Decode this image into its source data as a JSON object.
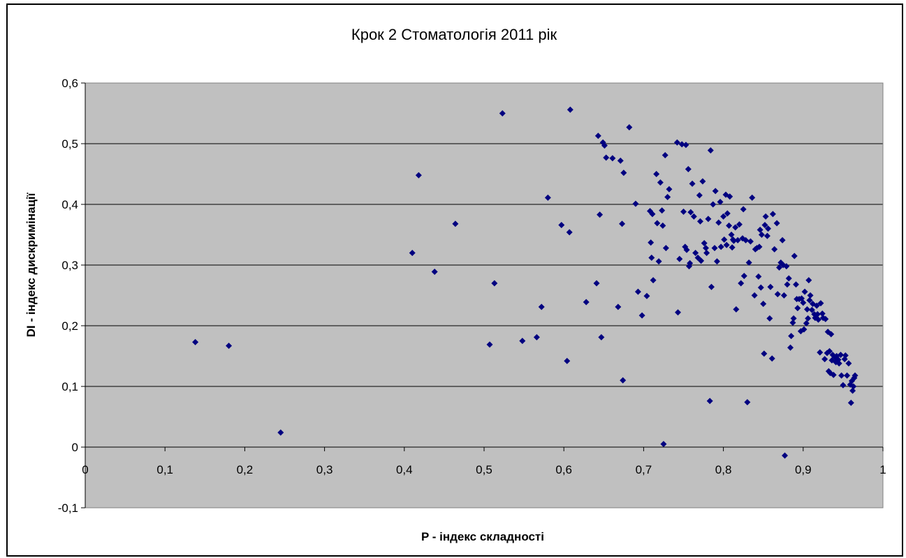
{
  "chart_data": {
    "type": "scatter",
    "title": "Крок 2 Стоматологія 2011 рік",
    "xlabel": "P - індекс складності",
    "ylabel": "DI - індекс дискримінації",
    "xlim": [
      0,
      1
    ],
    "ylim": [
      -0.1,
      0.6
    ],
    "x_ticks": [
      "0",
      "0,1",
      "0,2",
      "0,3",
      "0,4",
      "0,5",
      "0,6",
      "0,7",
      "0,8",
      "0,9",
      "1"
    ],
    "y_ticks": [
      "-0,1",
      "0",
      "0,1",
      "0,2",
      "0,3",
      "0,4",
      "0,5",
      "0,6"
    ],
    "grid": "horizontal",
    "plot_background": "#C0C0C0",
    "marker_color": "#000080",
    "marker": "diamond",
    "points": [
      [
        0.138,
        0.173
      ],
      [
        0.18,
        0.167
      ],
      [
        0.245,
        0.024
      ],
      [
        0.41,
        0.32
      ],
      [
        0.418,
        0.448
      ],
      [
        0.438,
        0.289
      ],
      [
        0.464,
        0.368
      ],
      [
        0.507,
        0.169
      ],
      [
        0.513,
        0.27
      ],
      [
        0.523,
        0.55
      ],
      [
        0.548,
        0.175
      ],
      [
        0.566,
        0.181
      ],
      [
        0.572,
        0.231
      ],
      [
        0.58,
        0.411
      ],
      [
        0.597,
        0.366
      ],
      [
        0.604,
        0.142
      ],
      [
        0.607,
        0.354
      ],
      [
        0.608,
        0.556
      ],
      [
        0.628,
        0.239
      ],
      [
        0.641,
        0.27
      ],
      [
        0.643,
        0.513
      ],
      [
        0.645,
        0.383
      ],
      [
        0.647,
        0.181
      ],
      [
        0.649,
        0.502
      ],
      [
        0.651,
        0.497
      ],
      [
        0.653,
        0.477
      ],
      [
        0.661,
        0.476
      ],
      [
        0.668,
        0.231
      ],
      [
        0.671,
        0.472
      ],
      [
        0.673,
        0.368
      ],
      [
        0.674,
        0.11
      ],
      [
        0.675,
        0.452
      ],
      [
        0.682,
        0.527
      ],
      [
        0.69,
        0.401
      ],
      [
        0.693,
        0.256
      ],
      [
        0.698,
        0.217
      ],
      [
        0.704,
        0.249
      ],
      [
        0.708,
        0.389
      ],
      [
        0.709,
        0.337
      ],
      [
        0.71,
        0.312
      ],
      [
        0.711,
        0.384
      ],
      [
        0.712,
        0.275
      ],
      [
        0.716,
        0.45
      ],
      [
        0.717,
        0.369
      ],
      [
        0.719,
        0.306
      ],
      [
        0.721,
        0.436
      ],
      [
        0.723,
        0.39
      ],
      [
        0.724,
        0.365
      ],
      [
        0.725,
        0.005
      ],
      [
        0.727,
        0.481
      ],
      [
        0.728,
        0.328
      ],
      [
        0.73,
        0.412
      ],
      [
        0.732,
        0.425
      ],
      [
        0.742,
        0.502
      ],
      [
        0.743,
        0.222
      ],
      [
        0.745,
        0.31
      ],
      [
        0.748,
        0.499
      ],
      [
        0.75,
        0.388
      ],
      [
        0.752,
        0.33
      ],
      [
        0.753,
        0.498
      ],
      [
        0.754,
        0.325
      ],
      [
        0.756,
        0.458
      ],
      [
        0.757,
        0.298
      ],
      [
        0.758,
        0.303
      ],
      [
        0.759,
        0.387
      ],
      [
        0.761,
        0.434
      ],
      [
        0.763,
        0.38
      ],
      [
        0.765,
        0.32
      ],
      [
        0.768,
        0.312
      ],
      [
        0.77,
        0.415
      ],
      [
        0.771,
        0.372
      ],
      [
        0.772,
        0.307
      ],
      [
        0.774,
        0.438
      ],
      [
        0.776,
        0.336
      ],
      [
        0.778,
        0.328
      ],
      [
        0.779,
        0.32
      ],
      [
        0.781,
        0.376
      ],
      [
        0.783,
        0.076
      ],
      [
        0.784,
        0.489
      ],
      [
        0.785,
        0.264
      ],
      [
        0.787,
        0.4
      ],
      [
        0.789,
        0.328
      ],
      [
        0.79,
        0.422
      ],
      [
        0.792,
        0.306
      ],
      [
        0.794,
        0.37
      ],
      [
        0.796,
        0.404
      ],
      [
        0.797,
        0.33
      ],
      [
        0.8,
        0.38
      ],
      [
        0.801,
        0.342
      ],
      [
        0.803,
        0.416
      ],
      [
        0.804,
        0.333
      ],
      [
        0.805,
        0.385
      ],
      [
        0.807,
        0.365
      ],
      [
        0.808,
        0.413
      ],
      [
        0.81,
        0.35
      ],
      [
        0.811,
        0.329
      ],
      [
        0.812,
        0.342
      ],
      [
        0.813,
        0.34
      ],
      [
        0.815,
        0.362
      ],
      [
        0.816,
        0.227
      ],
      [
        0.818,
        0.341
      ],
      [
        0.82,
        0.367
      ],
      [
        0.822,
        0.27
      ],
      [
        0.824,
        0.344
      ],
      [
        0.825,
        0.392
      ],
      [
        0.826,
        0.282
      ],
      [
        0.828,
        0.341
      ],
      [
        0.83,
        0.074
      ],
      [
        0.832,
        0.304
      ],
      [
        0.834,
        0.339
      ],
      [
        0.836,
        0.411
      ],
      [
        0.839,
        0.25
      ],
      [
        0.84,
        0.326
      ],
      [
        0.842,
        0.328
      ],
      [
        0.844,
        0.281
      ],
      [
        0.845,
        0.33
      ],
      [
        0.846,
        0.358
      ],
      [
        0.847,
        0.263
      ],
      [
        0.848,
        0.35
      ],
      [
        0.85,
        0.236
      ],
      [
        0.851,
        0.154
      ],
      [
        0.852,
        0.366
      ],
      [
        0.853,
        0.38
      ],
      [
        0.855,
        0.348
      ],
      [
        0.856,
        0.36
      ],
      [
        0.858,
        0.212
      ],
      [
        0.859,
        0.264
      ],
      [
        0.861,
        0.146
      ],
      [
        0.862,
        0.384
      ],
      [
        0.864,
        0.326
      ],
      [
        0.867,
        0.369
      ],
      [
        0.868,
        0.252
      ],
      [
        0.87,
        0.296
      ],
      [
        0.872,
        0.304
      ],
      [
        0.874,
        0.341
      ],
      [
        0.875,
        0.3
      ],
      [
        0.876,
        0.25
      ],
      [
        0.877,
        -0.014
      ],
      [
        0.879,
        0.298
      ],
      [
        0.88,
        0.268
      ],
      [
        0.882,
        0.278
      ],
      [
        0.884,
        0.164
      ],
      [
        0.885,
        0.183
      ],
      [
        0.887,
        0.205
      ],
      [
        0.888,
        0.212
      ],
      [
        0.889,
        0.315
      ],
      [
        0.891,
        0.268
      ],
      [
        0.892,
        0.244
      ],
      [
        0.893,
        0.229
      ],
      [
        0.895,
        0.244
      ],
      [
        0.897,
        0.191
      ],
      [
        0.898,
        0.245
      ],
      [
        0.9,
        0.238
      ],
      [
        0.901,
        0.194
      ],
      [
        0.902,
        0.256
      ],
      [
        0.904,
        0.204
      ],
      [
        0.905,
        0.227
      ],
      [
        0.906,
        0.212
      ],
      [
        0.907,
        0.275
      ],
      [
        0.908,
        0.242
      ],
      [
        0.909,
        0.25
      ],
      [
        0.911,
        0.226
      ],
      [
        0.912,
        0.236
      ],
      [
        0.914,
        0.219
      ],
      [
        0.915,
        0.213
      ],
      [
        0.917,
        0.233
      ],
      [
        0.918,
        0.219
      ],
      [
        0.919,
        0.21
      ],
      [
        0.921,
        0.156
      ],
      [
        0.922,
        0.237
      ],
      [
        0.924,
        0.22
      ],
      [
        0.925,
        0.213
      ],
      [
        0.927,
        0.145
      ],
      [
        0.928,
        0.211
      ],
      [
        0.93,
        0.155
      ],
      [
        0.931,
        0.19
      ],
      [
        0.932,
        0.125
      ],
      [
        0.933,
        0.158
      ],
      [
        0.934,
        0.122
      ],
      [
        0.935,
        0.186
      ],
      [
        0.936,
        0.143
      ],
      [
        0.937,
        0.152
      ],
      [
        0.938,
        0.119
      ],
      [
        0.94,
        0.148
      ],
      [
        0.941,
        0.14
      ],
      [
        0.942,
        0.15
      ],
      [
        0.944,
        0.144
      ],
      [
        0.945,
        0.138
      ],
      [
        0.947,
        0.152
      ],
      [
        0.948,
        0.118
      ],
      [
        0.95,
        0.102
      ],
      [
        0.952,
        0.145
      ],
      [
        0.953,
        0.151
      ],
      [
        0.955,
        0.118
      ],
      [
        0.957,
        0.138
      ],
      [
        0.959,
        0.103
      ],
      [
        0.96,
        0.073
      ],
      [
        0.961,
        0.109
      ],
      [
        0.962,
        0.093
      ],
      [
        0.963,
        0.1
      ],
      [
        0.964,
        0.114
      ],
      [
        0.965,
        0.118
      ]
    ]
  }
}
